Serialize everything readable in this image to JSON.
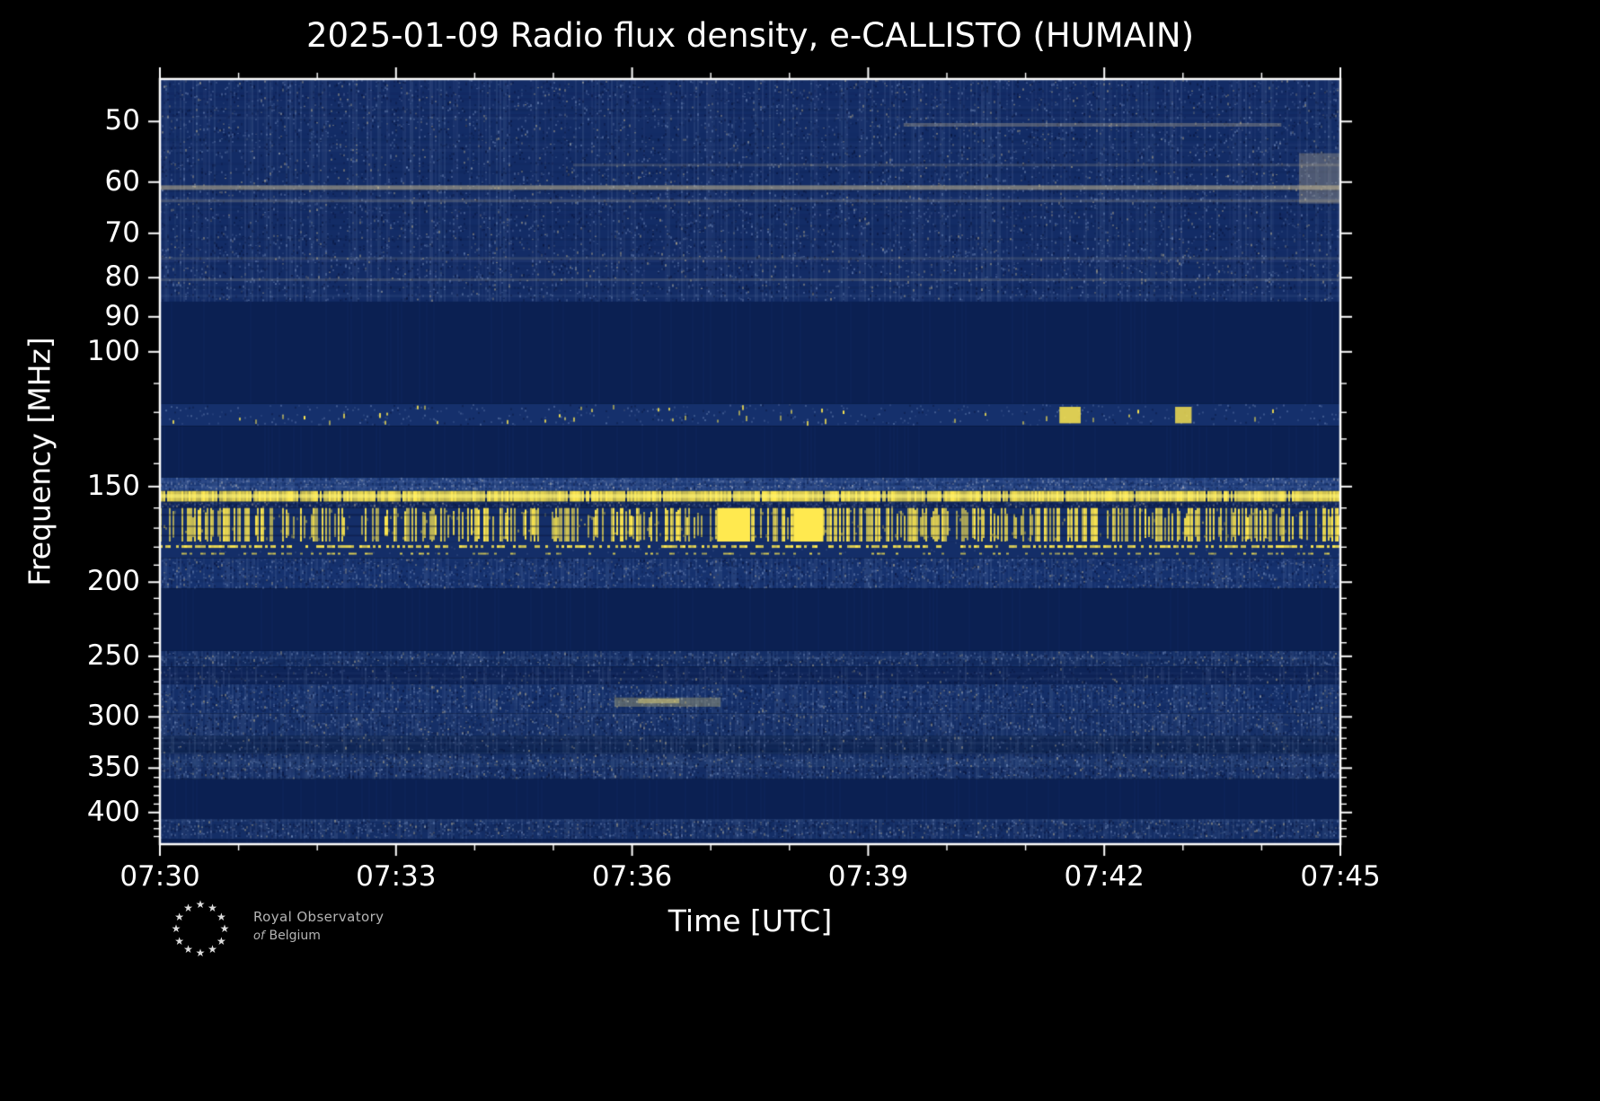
{
  "title": "2025-01-09 Radio flux density, e-CALLISTO (HUMAIN)",
  "logo": {
    "line1": "Royal Observatory",
    "of": "of",
    "belgium": "Belgium"
  },
  "chart_data": {
    "type": "heatmap",
    "title": "2025-01-09 Radio flux density, e-CALLISTO (HUMAIN)",
    "xlabel": "Time [UTC]",
    "ylabel": "Frequency [MHz]",
    "x_ticks": [
      "07:30",
      "07:33",
      "07:36",
      "07:39",
      "07:42",
      "07:45"
    ],
    "x_start": "07:30",
    "x_end": "07:45",
    "x_span_minutes": 15,
    "x_minor_step_minutes": 1,
    "y_scale": "log",
    "y_inverted": true,
    "y_ticks": [
      50,
      60,
      70,
      80,
      90,
      100,
      150,
      200,
      250,
      300,
      350,
      400
    ],
    "y_range": [
      44,
      440
    ],
    "colors": {
      "background": "#000000",
      "plot_base": "#132c66",
      "blank_band": "#0b2052",
      "burst_yellow": "#ffe94f",
      "axis": "#ffffff",
      "faint_beige": "#cdbc8e"
    },
    "bands": [
      {
        "f": [
          44,
          86
        ],
        "style": "noise",
        "base": "#132c66",
        "colp": 0.35,
        "density": 0.3,
        "light": "#8ea6d2",
        "beige": "#cdbc8e",
        "dark": "#050f33"
      },
      {
        "f": [
          86,
          117
        ],
        "style": "blank",
        "base": "#0b2052"
      },
      {
        "f": [
          117,
          125
        ],
        "style": "speckrow",
        "base": "#15306c",
        "density": 0.5,
        "bright": "#ffe94f",
        "light": "#8ea6d2"
      },
      {
        "f": [
          125,
          146
        ],
        "style": "blank",
        "base": "#0b2052"
      },
      {
        "f": [
          146,
          152
        ],
        "style": "noise",
        "base": "#1e3d7d",
        "colp": 0.5,
        "density": 0.7,
        "light": "#aab9d8",
        "beige": "#d8d2c0",
        "dark": "#0a1a45"
      },
      {
        "f": [
          152,
          157
        ],
        "style": "yline",
        "base": "#10265c",
        "yellow": "#ffe94f"
      },
      {
        "f": [
          157,
          160
        ],
        "style": "noise",
        "base": "#10265c",
        "colp": 0.3,
        "density": 0.5,
        "light": "#7e94c0",
        "beige": "#c9b98f",
        "dark": "#050f33"
      },
      {
        "f": [
          160,
          177
        ],
        "style": "ystripes",
        "base": "#142e68",
        "yellow": "#ffe94f",
        "density": 0.52
      },
      {
        "f": [
          177,
          186
        ],
        "style": "ydashes",
        "base": "#142e68",
        "yellow": "#ffe94f",
        "density": 0.62
      },
      {
        "f": [
          186,
          204
        ],
        "style": "noise",
        "base": "#16326f",
        "colp": 0.4,
        "density": 0.55,
        "light": "#8ea6d2",
        "beige": "#c9b98f",
        "dark": "#061036"
      },
      {
        "f": [
          204,
          246
        ],
        "style": "blank",
        "base": "#0b2052"
      },
      {
        "f": [
          246,
          258
        ],
        "style": "noise",
        "base": "#142e66",
        "colp": 0.4,
        "density": 0.5,
        "light": "#8ea6d2",
        "beige": "#c9b98f",
        "dark": "#061036"
      },
      {
        "f": [
          258,
          272
        ],
        "style": "noise",
        "base": "#0e2458",
        "colp": 0.2,
        "density": 0.25,
        "light": "#6d83b4",
        "beige": "#b7a97f",
        "dark": "#050f33"
      },
      {
        "f": [
          272,
          297
        ],
        "style": "noise",
        "base": "#142f69",
        "colp": 0.45,
        "density": 0.55,
        "light": "#8ea6d2",
        "beige": "#cdbc8e",
        "dark": "#061036"
      },
      {
        "f": [
          297,
          318
        ],
        "style": "noise",
        "base": "#152f67",
        "colp": 0.5,
        "density": 0.6,
        "light": "#8ea6d2",
        "beige": "#c9b98f",
        "dark": "#050f33"
      },
      {
        "f": [
          318,
          335
        ],
        "style": "noise",
        "base": "#102757",
        "colp": 0.3,
        "density": 0.35,
        "light": "#7e94c0",
        "beige": "#c9b98f",
        "dark": "#050f33"
      },
      {
        "f": [
          335,
          362
        ],
        "style": "noise",
        "base": "#152f67",
        "colp": 0.5,
        "density": 0.6,
        "light": "#8ea6d2",
        "beige": "#c9b98f",
        "dark": "#040d2e"
      },
      {
        "f": [
          362,
          408
        ],
        "style": "blank",
        "base": "#0b2052"
      },
      {
        "f": [
          408,
          433
        ],
        "style": "noise",
        "base": "#142e66",
        "colp": 0.45,
        "density": 0.55,
        "light": "#8ea6d2",
        "beige": "#c9b98f",
        "dark": "#061036"
      },
      {
        "f": [
          433,
          440
        ],
        "style": "blank",
        "base": "#0b2052"
      }
    ],
    "streaks": [
      {
        "f": 61,
        "h": 5,
        "color": "rgba(214,196,148,0.50)",
        "x": [
          0,
          1
        ]
      },
      {
        "f": 63.5,
        "h": 3,
        "color": "rgba(214,196,148,0.22)",
        "x": [
          0,
          1
        ]
      },
      {
        "f": 57,
        "h": 3,
        "color": "rgba(214,196,148,0.18)",
        "x": [
          0.35,
          1
        ]
      },
      {
        "f": 50.5,
        "h": 4,
        "color": "rgba(214,196,148,0.30)",
        "x": [
          0.63,
          0.95
        ]
      },
      {
        "f": 75.5,
        "h": 3,
        "color": "rgba(190,180,150,0.15)",
        "x": [
          0,
          1
        ]
      },
      {
        "f": 80.5,
        "h": 3,
        "color": "rgba(190,180,150,0.20)",
        "x": [
          0,
          1
        ]
      }
    ],
    "events": [
      {
        "x": [
          0.472,
          0.5
        ],
        "f": [
          160,
          177
        ],
        "color": "#ffe94f"
      },
      {
        "x": [
          0.537,
          0.562
        ],
        "f": [
          160,
          177
        ],
        "color": "#ffe94f"
      },
      {
        "x": [
          0.385,
          0.475
        ],
        "f": [
          283,
          291
        ],
        "color": "rgba(235,214,120,0.30)"
      },
      {
        "x": [
          0.405,
          0.44
        ],
        "f": [
          284,
          288
        ],
        "color": "rgba(245,225,120,0.45)"
      },
      {
        "x": [
          0.762,
          0.78
        ],
        "f": [
          118,
          124
        ],
        "color": "rgba(255,233,79,0.85)"
      },
      {
        "x": [
          0.86,
          0.874
        ],
        "f": [
          118,
          124
        ],
        "color": "rgba(255,233,79,0.80)"
      },
      {
        "x": [
          0.965,
          1.0
        ],
        "f": [
          55,
          64
        ],
        "color": "rgba(214,196,148,0.30)"
      }
    ]
  }
}
